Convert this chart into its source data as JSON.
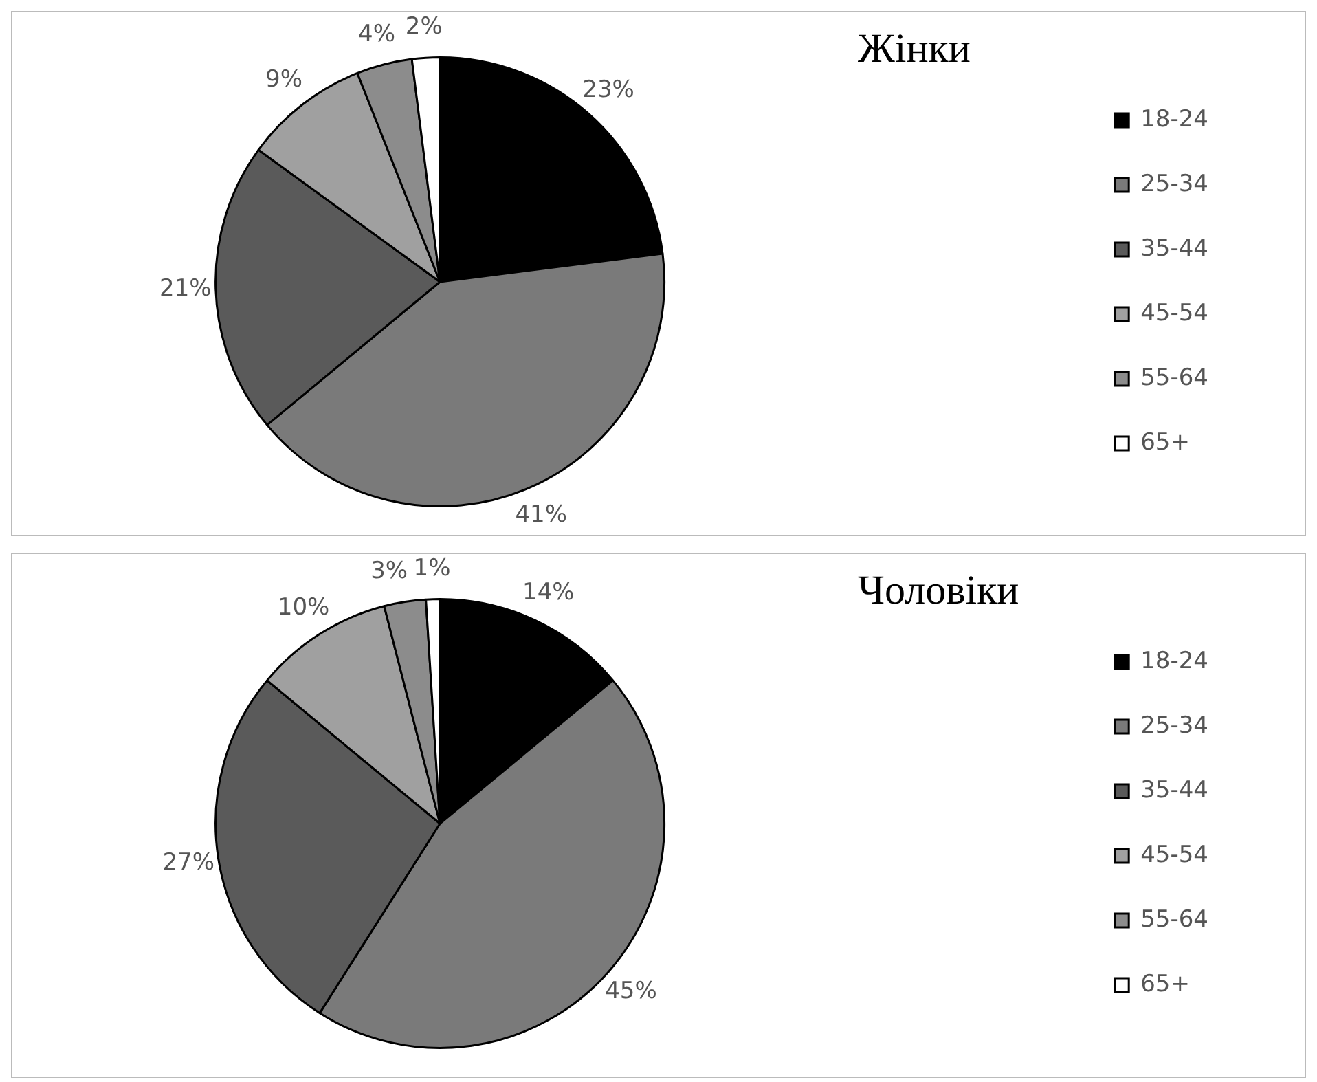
{
  "chart_data": [
    {
      "type": "pie",
      "title": "Жінки",
      "categories": [
        "18-24",
        "25-34",
        "35-44",
        "45-54",
        "55-64",
        "65+"
      ],
      "values": [
        23,
        41,
        21,
        9,
        4,
        2
      ],
      "value_labels": [
        "23%",
        "41%",
        "21%",
        "9%",
        "4%",
        "2%"
      ],
      "colors": [
        "#000000",
        "#7a7a7a",
        "#5a5a5a",
        "#a0a0a0",
        "#8c8c8c",
        "#ffffff"
      ],
      "legend": "right"
    },
    {
      "type": "pie",
      "title": "Чоловіки",
      "categories": [
        "18-24",
        "25-34",
        "35-44",
        "45-54",
        "55-64",
        "65+"
      ],
      "values": [
        14,
        45,
        27,
        10,
        3,
        1
      ],
      "value_labels": [
        "14%",
        "45%",
        "27%",
        "10%",
        "3%",
        "1%"
      ],
      "colors": [
        "#000000",
        "#7a7a7a",
        "#5a5a5a",
        "#a0a0a0",
        "#8c8c8c",
        "#ffffff"
      ],
      "legend": "right"
    }
  ]
}
